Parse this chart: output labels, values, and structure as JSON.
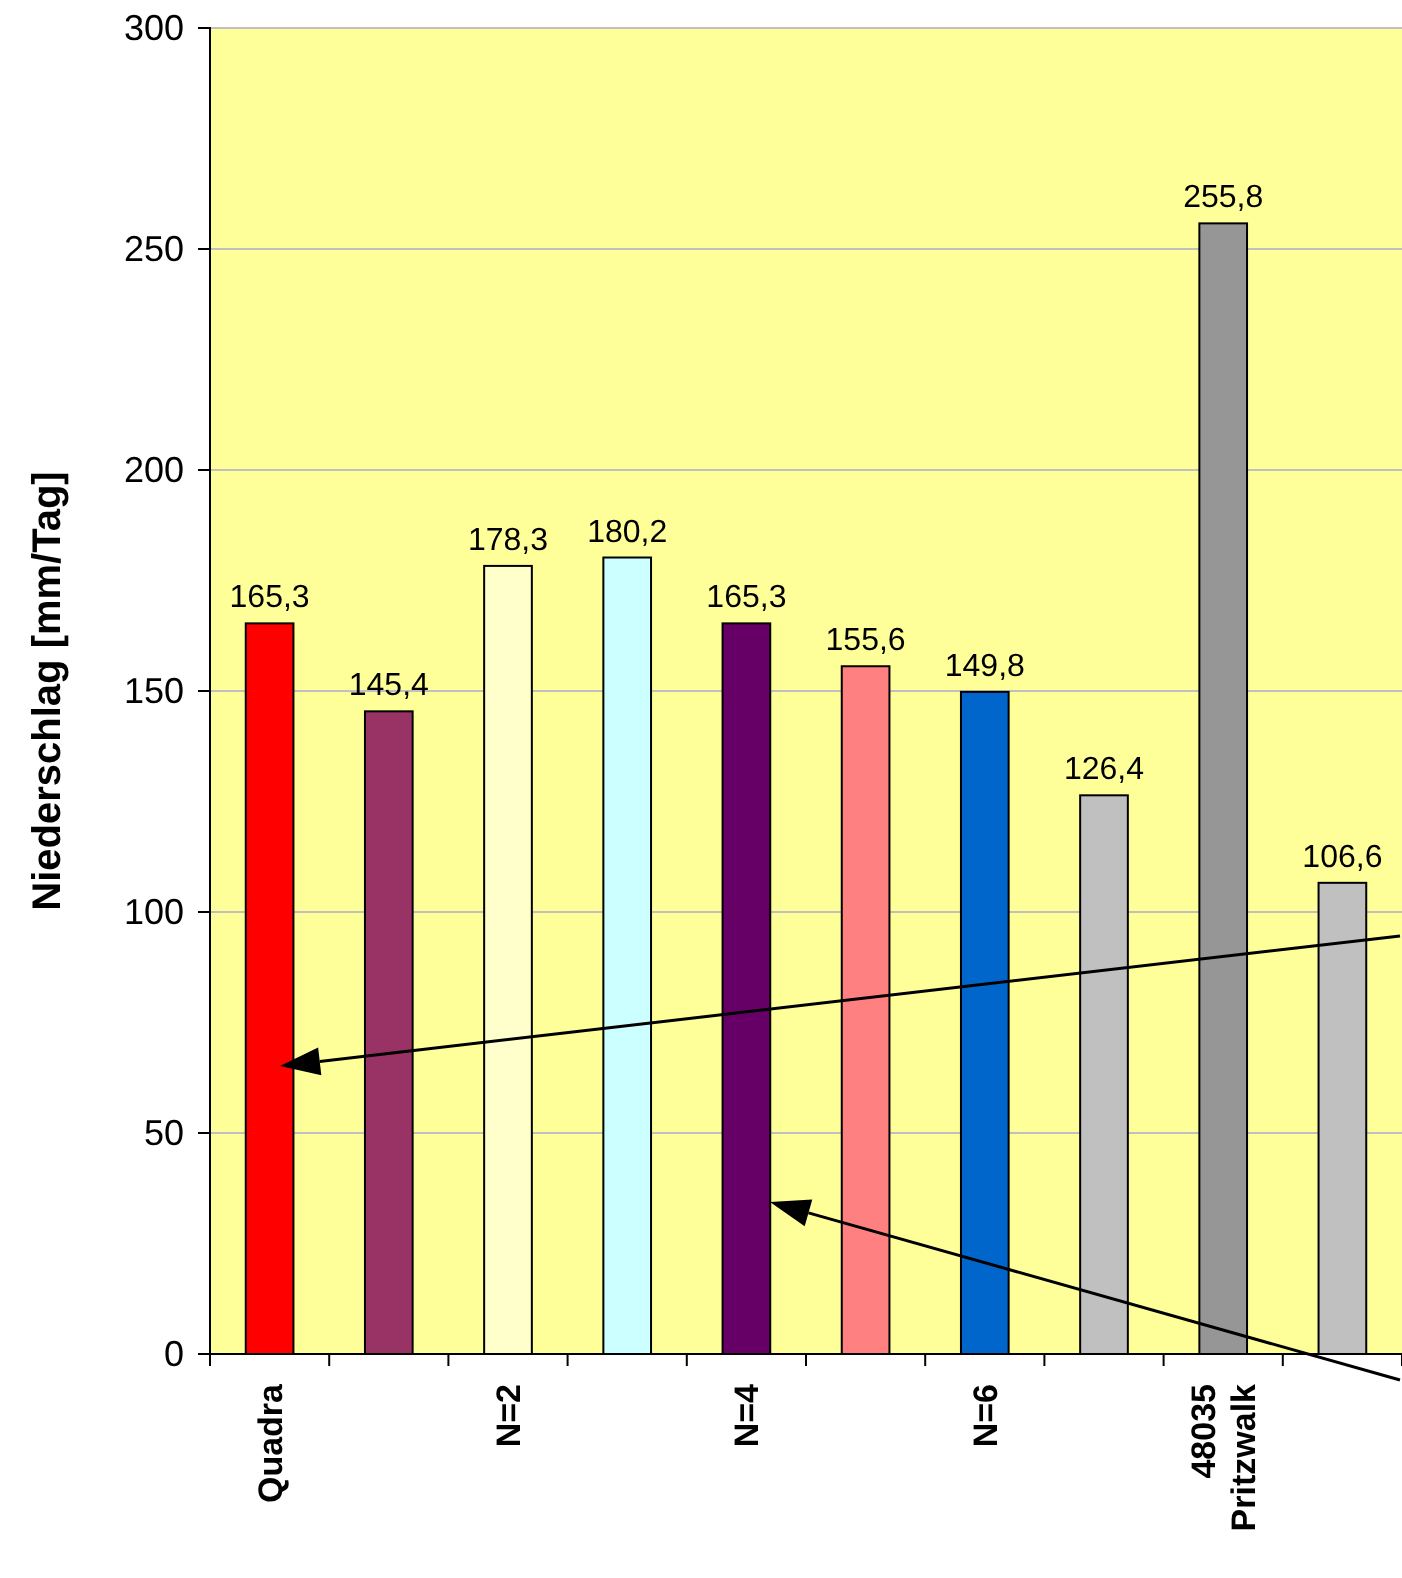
{
  "chart_data": {
    "type": "bar",
    "ylabel": "Niederschlag [mm/Tag]",
    "categories": [
      "Quadra",
      null,
      "N=2",
      null,
      "N=4",
      null,
      "N=6",
      null,
      "48035\nPritzwalk",
      null
    ],
    "values": [
      165.3,
      145.4,
      178.3,
      180.2,
      165.3,
      155.6,
      149.8,
      126.4,
      255.8,
      106.6
    ],
    "colors": [
      "#ff0000",
      "#993366",
      "#ffffcc",
      "#ccffff",
      "#660066",
      "#ff8080",
      "#0066cc",
      "#c0c0c0",
      "#969696",
      "#c0c0c0"
    ],
    "value_labels": [
      "165,3",
      "145,4",
      "178,3",
      "180,2",
      "165,3",
      "155,6",
      "149,8",
      "126,4",
      "255,8",
      "106,6"
    ],
    "ylim": [
      0,
      300
    ],
    "yticks": [
      0,
      50,
      100,
      150,
      200,
      250,
      300
    ],
    "grid": "y"
  }
}
